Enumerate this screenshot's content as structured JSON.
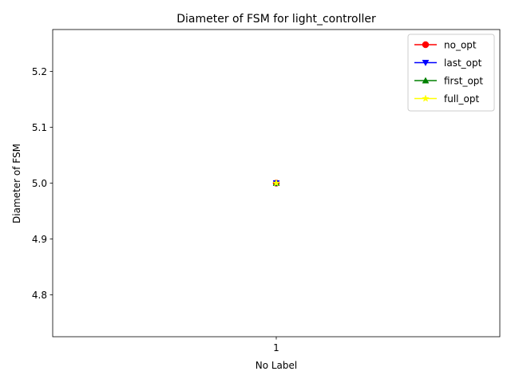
{
  "chart_data": {
    "type": "line",
    "title": "Diameter of FSM for light_controller",
    "xlabel": "No Label",
    "ylabel": "Diameter of FSM",
    "categories": [
      "1"
    ],
    "x": [
      1
    ],
    "xlim": [
      0.5,
      1.5
    ],
    "ylim": [
      4.725,
      5.275
    ],
    "yticks": [
      4.8,
      4.9,
      5.0,
      5.1,
      5.2
    ],
    "ytick_labels": [
      "4.8",
      "4.9",
      "5.0",
      "5.1",
      "5.2"
    ],
    "grid": false,
    "legend_position": "top-right",
    "series": [
      {
        "name": "no_opt",
        "values": [
          5
        ],
        "color": "#ff0000",
        "marker": "circle"
      },
      {
        "name": "last_opt",
        "values": [
          5
        ],
        "color": "#0000ff",
        "marker": "triangle-down"
      },
      {
        "name": "first_opt",
        "values": [
          5
        ],
        "color": "#008000",
        "marker": "triangle-up"
      },
      {
        "name": "full_opt",
        "values": [
          5
        ],
        "color": "#ffff00",
        "marker": "star"
      }
    ]
  }
}
